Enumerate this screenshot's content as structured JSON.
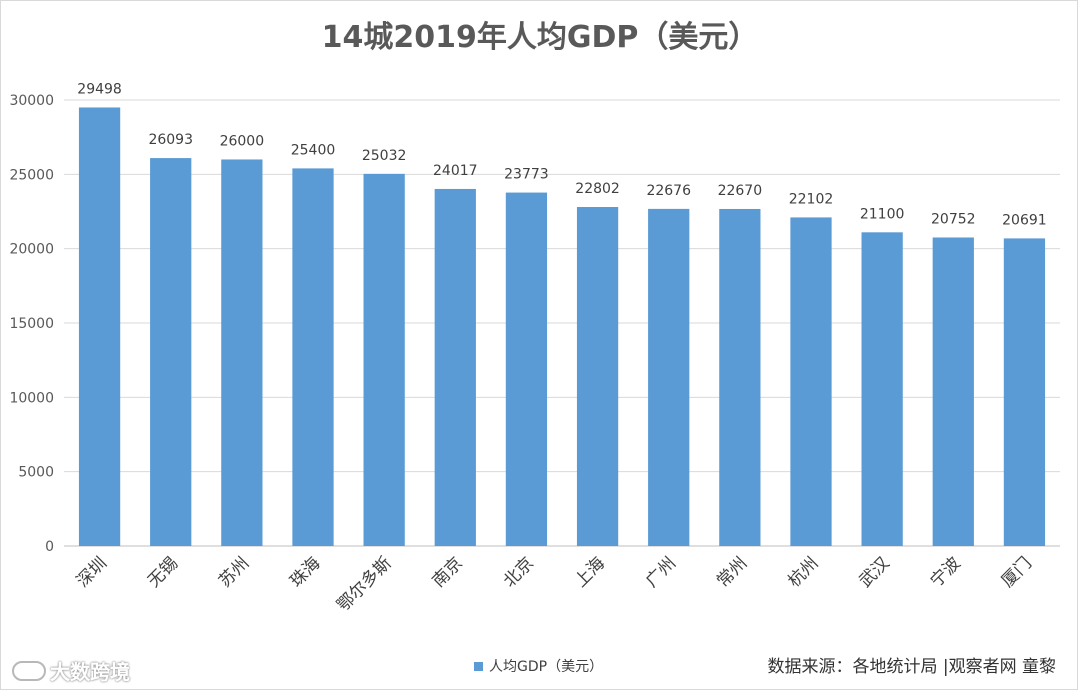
{
  "chart_data": {
    "type": "bar",
    "title": "14城2019年人均GDP（美元）",
    "categories": [
      "深圳",
      "无锡",
      "苏州",
      "珠海",
      "鄂尔多斯",
      "南京",
      "北京",
      "上海",
      "广州",
      "常州",
      "杭州",
      "武汉",
      "宁波",
      "厦门"
    ],
    "series": [
      {
        "name": "人均GDP（美元）",
        "values": [
          29498,
          26093,
          26000,
          25400,
          25032,
          24017,
          23773,
          22802,
          22676,
          22670,
          22102,
          21100,
          20752,
          20691
        ]
      }
    ],
    "ylim": [
      0,
      30000
    ],
    "yticks": [
      0,
      5000,
      10000,
      15000,
      20000,
      25000,
      30000
    ],
    "grid": true,
    "legend_position": "bottom",
    "bar_color": "#5b9bd5"
  },
  "source_text": "数据来源：各地统计局 |观察者网 童黎",
  "watermark_text": "大数跨境"
}
